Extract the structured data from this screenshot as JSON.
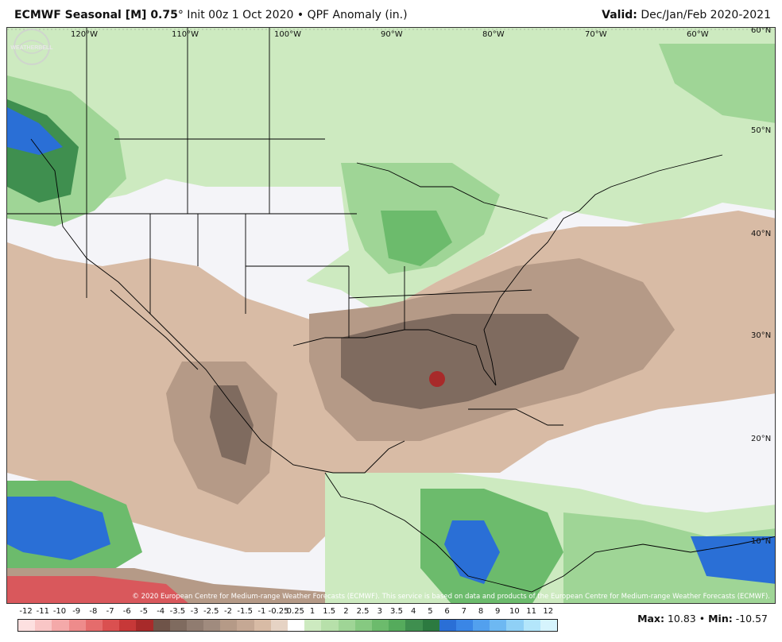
{
  "header": {
    "model": "ECMWF Seasonal [M] 0.75",
    "degree": "°",
    "init": " Init 00z 1 Oct 2020",
    "bullet": " • ",
    "product": "QPF Anomaly (in.)",
    "valid_label": "Valid:",
    "valid_value": " Dec/Jan/Feb 2020-2021"
  },
  "map": {
    "lon_labels": [
      "120°W",
      "110°W",
      "100°W",
      "90°W",
      "80°W",
      "70°W",
      "60°W"
    ],
    "lat_labels": [
      "60°N",
      "50°N",
      "40°N",
      "30°N",
      "20°N",
      "10°N"
    ],
    "copyright": "© 2020 European Centre for Medium-range Weather Forecasts (ECMWF). This service is based on data and products of the European Centre for Medium-range Weather Forecasts (ECMWF).",
    "watermark_text": "WEATHERBELL",
    "colors": {
      "ocean_neutral": "#f4f4f8",
      "dry_light": "#d8bba5",
      "dry_mid": "#b59a87",
      "dry_dark": "#7f6b5f",
      "dry_extreme": "#a82a2a",
      "wet_light": "#cdeac0",
      "wet_mid": "#9fd596",
      "wet_dark": "#3f8f4f",
      "wet_blue": "#2a6fd6",
      "neg_red": "#d9585c",
      "border": "#000000"
    }
  },
  "legend": {
    "ticks": [
      "-12",
      "-11",
      "-10",
      "-9",
      "-8",
      "-7",
      "-6",
      "-5",
      "-4",
      "-3.5",
      "-3",
      "-2.5",
      "-2",
      "-1.5",
      "-1",
      "-0.25",
      "0.25",
      "1",
      "1.5",
      "2",
      "2.5",
      "3",
      "3.5",
      "4",
      "5",
      "6",
      "7",
      "8",
      "9",
      "10",
      "11",
      "12"
    ],
    "colors": [
      "#fde0e0",
      "#f9c6c6",
      "#f4a9a9",
      "#ee8b8b",
      "#e56c6c",
      "#da5050",
      "#c73838",
      "#a82a2a",
      "#6f5449",
      "#7f6b5f",
      "#907c70",
      "#a08b7e",
      "#b59a87",
      "#c5a894",
      "#d8bba5",
      "#e6d3c4",
      "#ffffff",
      "#cdeac0",
      "#b7e0aa",
      "#9fd596",
      "#86c981",
      "#6cbb6c",
      "#55ab5c",
      "#3f8f4f",
      "#2c7a40",
      "#2a6fd6",
      "#3a86e6",
      "#52a0ee",
      "#6db8f2",
      "#8fd0f6",
      "#b3e6fb",
      "#d6f4fd"
    ]
  },
  "stats": {
    "max_label": "Max:",
    "max_value": " 10.83",
    "sep": " • ",
    "min_label": "Min:",
    "min_value": " -10.57"
  }
}
